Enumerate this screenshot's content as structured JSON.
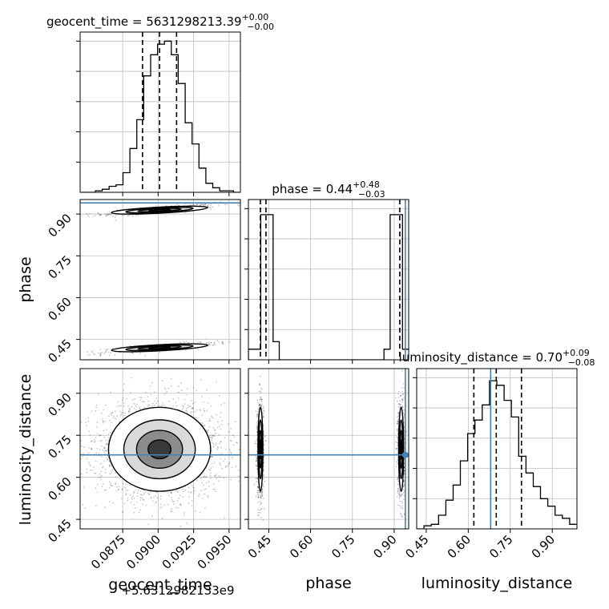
{
  "chart_data": {
    "type": "corner",
    "grid": true,
    "parameters": [
      "geocent_time",
      "phase",
      "luminosity_distance"
    ],
    "titles": [
      {
        "param": "geocent_time",
        "text": "geocent_time = 5631298213.39",
        "sup": "+0.00",
        "sub": "−0.00"
      },
      {
        "param": "phase",
        "text": "phase = 0.44",
        "sup": "+0.48",
        "sub": "−0.03"
      },
      {
        "param": "luminosity_distance",
        "text": "luminosity_distance = 0.70",
        "sup": "+0.09",
        "sub": "−0.08"
      }
    ],
    "axis_labels": {
      "geocent_time": "geocent_time",
      "phase": "phase",
      "luminosity_distance": "luminosity_distance"
    },
    "geocent_time_offset": "+5.6312982133e9",
    "ranges": {
      "geocent_time": [
        0.0845,
        0.0958
      ],
      "phase": [
        0.377,
        0.952
      ],
      "luminosity_distance": [
        0.416,
        0.988
      ]
    },
    "ticks": {
      "geocent_time": [
        "0.0875",
        "0.0900",
        "0.0925",
        "0.0950"
      ],
      "phase": [
        "0.45",
        "0.60",
        "0.75",
        "0.90"
      ],
      "luminosity_distance": [
        "0.45",
        "0.60",
        "0.75",
        "0.90"
      ]
    },
    "truths": {
      "phase": 0.94,
      "luminosity_distance": 0.68
    },
    "quantiles": {
      "geocent_time": [
        0.0889,
        0.0901,
        0.0913
      ],
      "phase": [
        0.42,
        0.44,
        0.92
      ],
      "luminosity_distance": [
        0.62,
        0.7,
        0.79
      ]
    },
    "histograms": {
      "geocent_time": {
        "bins": [
          0.0846,
          0.0958
        ],
        "counts": [
          0,
          0,
          0.01,
          0.02,
          0.04,
          0.05,
          0.13,
          0.29,
          0.48,
          0.77,
          0.91,
          0.98,
          1.0,
          0.91,
          0.72,
          0.46,
          0.32,
          0.16,
          0.06,
          0.03,
          0.01,
          0.01,
          0
        ]
      },
      "phase": {
        "bins": [
          0.377,
          0.952
        ],
        "counts": [
          0.07,
          0.07,
          0.96,
          0.96,
          0.12,
          0,
          0,
          0,
          0,
          0,
          0,
          0,
          0,
          0,
          0,
          0,
          0,
          0,
          0,
          0,
          0,
          0,
          0.07,
          0.96,
          0.96,
          0.07
        ]
      },
      "luminosity_distance": {
        "bins": [
          0.416,
          0.988
        ],
        "counts": [
          0,
          0.02,
          0.03,
          0.09,
          0.19,
          0.29,
          0.45,
          0.63,
          0.72,
          0.82,
          0.98,
          0.95,
          0.85,
          0.74,
          0.48,
          0.37,
          0.28,
          0.2,
          0.15,
          0.09,
          0.07,
          0.03
        ]
      }
    },
    "colors": {
      "truth": "#4682b4",
      "hist": "#000000",
      "grid": "#bdbdbd"
    }
  }
}
